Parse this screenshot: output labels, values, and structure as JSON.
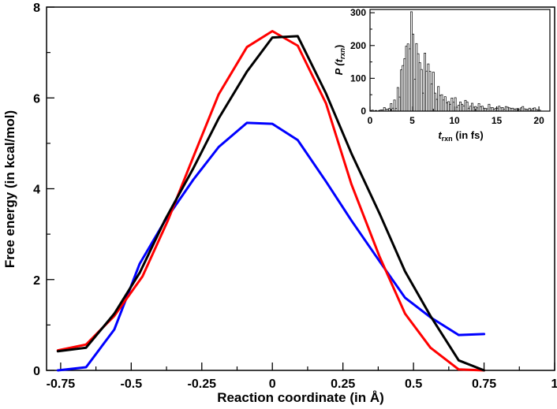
{
  "chart_data": [
    {
      "type": "line",
      "title": "",
      "xlabel": "Reaction coordinate (in Å)",
      "ylabel": "Free energy (in kcal/mol)",
      "xlim": [
        -0.8,
        1.0
      ],
      "ylim": [
        0,
        8
      ],
      "xticks": [
        -0.75,
        -0.5,
        -0.25,
        0,
        0.25,
        0.5,
        0.75,
        1
      ],
      "xtick_labels": [
        "-0.75",
        "-0.5",
        "-0.25",
        "0",
        "0.25",
        "0.5",
        "0.75",
        "1"
      ],
      "yticks": [
        0,
        2,
        4,
        6,
        8
      ],
      "ytick_labels": [
        "0",
        "2",
        "4",
        "6",
        "8"
      ],
      "series": [
        {
          "name": "red",
          "color": "#ff0000",
          "x": [
            -0.76,
            -0.66,
            -0.56,
            -0.46,
            -0.37,
            -0.28,
            -0.19,
            -0.09,
            0.0,
            0.09,
            0.19,
            0.28,
            0.38,
            0.47,
            0.56,
            0.66,
            0.75
          ],
          "y": [
            0.44,
            0.57,
            1.2,
            2.07,
            3.3,
            4.7,
            6.08,
            7.12,
            7.47,
            7.15,
            5.88,
            4.1,
            2.5,
            1.25,
            0.5,
            0.02,
            0.0
          ]
        },
        {
          "name": "black",
          "color": "#000000",
          "x": [
            -0.76,
            -0.66,
            -0.56,
            -0.47,
            -0.38,
            -0.28,
            -0.19,
            -0.09,
            0.0,
            0.09,
            0.19,
            0.28,
            0.38,
            0.47,
            0.56,
            0.66,
            0.75
          ],
          "y": [
            0.42,
            0.5,
            1.25,
            2.15,
            3.32,
            4.45,
            5.55,
            6.58,
            7.33,
            7.36,
            6.1,
            4.78,
            3.45,
            2.18,
            1.2,
            0.22,
            0.0
          ]
        },
        {
          "name": "blue",
          "color": "#0000ff",
          "x": [
            -0.76,
            -0.66,
            -0.56,
            -0.47,
            -0.38,
            -0.28,
            -0.19,
            -0.09,
            0.0,
            0.09,
            0.19,
            0.28,
            0.38,
            0.47,
            0.56,
            0.66,
            0.75
          ],
          "y": [
            0.0,
            0.07,
            0.9,
            2.35,
            3.3,
            4.2,
            4.92,
            5.45,
            5.43,
            5.07,
            4.16,
            3.3,
            2.4,
            1.6,
            1.17,
            0.78,
            0.8
          ]
        }
      ]
    },
    {
      "type": "bar",
      "title": "",
      "xlabel": "t",
      "xlabel_sub": "rxn",
      "xlabel_units": " (in fs)",
      "ylabel": "P (t",
      "ylabel_sub": "rxn",
      "ylabel_close": ")",
      "xlim": [
        0,
        21.3
      ],
      "ylim": [
        0,
        310
      ],
      "xticks": [
        0,
        5,
        10,
        15,
        20
      ],
      "xtick_labels": [
        "0",
        "5",
        "10",
        "15",
        "20"
      ],
      "yticks": [
        0,
        100,
        200,
        300
      ],
      "ytick_labels": [
        "0",
        "100",
        "200",
        "300"
      ],
      "bin_start": 0.0,
      "bin_width": 0.2,
      "values": [
        2,
        3,
        0,
        2,
        0,
        2,
        4,
        4,
        11,
        6,
        6,
        8,
        23,
        9,
        34,
        8,
        72,
        43,
        126,
        139,
        160,
        198,
        205,
        190,
        303,
        235,
        97,
        206,
        175,
        148,
        127,
        55,
        177,
        122,
        144,
        121,
        83,
        119,
        55,
        36,
        75,
        48,
        50,
        34,
        44,
        25,
        29,
        21,
        40,
        27,
        41,
        12,
        18,
        28,
        21,
        16,
        33,
        28,
        9,
        15,
        24,
        12,
        14,
        10,
        23,
        13,
        15,
        9,
        8,
        7,
        21,
        10,
        11,
        6,
        9,
        9,
        15,
        10,
        11,
        6,
        14,
        12,
        10,
        8,
        9,
        6,
        7,
        8,
        5,
        10,
        14,
        7,
        6,
        5,
        9,
        4,
        8,
        10,
        5,
        3,
        3
      ]
    }
  ]
}
